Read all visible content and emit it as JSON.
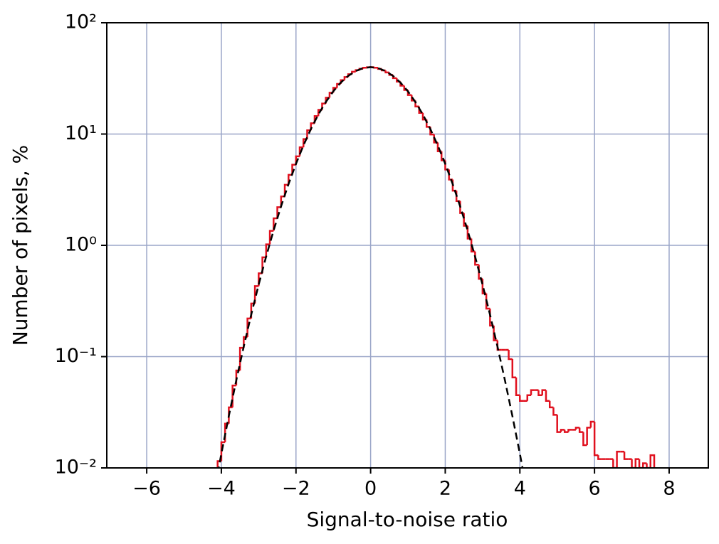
{
  "chart_data": {
    "type": "histogram",
    "xlabel": "Signal-to-noise ratio",
    "ylabel": "Number of pixels, %",
    "xlim": [
      -7.07,
      9.05
    ],
    "ylim": [
      0.01,
      100
    ],
    "log_y": true,
    "grid": true,
    "xticks": [
      {
        "value": -6,
        "label": "−6"
      },
      {
        "value": -4,
        "label": "−4"
      },
      {
        "value": -2,
        "label": "−2"
      },
      0,
      2,
      4,
      6,
      8
    ],
    "yticks": [
      {
        "value": 0.01,
        "label": "10⁻²"
      },
      {
        "value": 0.1,
        "label": "10⁻¹"
      },
      {
        "value": 1,
        "label": "10⁰"
      },
      {
        "value": 10,
        "label": "10¹"
      },
      {
        "value": 100,
        "label": "10²"
      }
    ],
    "color": "#e0101e",
    "bins": [
      -4.1,
      -4.0,
      -3.9,
      -3.8,
      -3.7,
      -3.6,
      -3.5,
      -3.4,
      -3.3,
      -3.2,
      -3.1,
      -3.0,
      -2.9,
      -2.8,
      -2.7,
      -2.6,
      -2.5,
      -2.4,
      -2.3,
      -2.2,
      -2.1,
      -2.0,
      -1.9,
      -1.8,
      -1.7,
      -1.6,
      -1.5,
      -1.4,
      -1.3,
      -1.2,
      -1.1,
      -1.0,
      -0.9,
      -0.8,
      -0.7,
      -0.6,
      -0.5,
      -0.4,
      -0.3,
      -0.2,
      -0.1,
      0,
      0.1,
      0.2,
      0.3,
      0.4,
      0.5,
      0.6,
      0.7,
      0.8,
      0.9,
      1.0,
      1.1,
      1.2,
      1.3,
      1.4,
      1.5,
      1.6,
      1.7,
      1.8,
      1.9,
      2.0,
      2.1,
      2.2,
      2.3,
      2.4,
      2.5,
      2.6,
      2.7,
      2.8,
      2.9,
      3.0,
      3.1,
      3.2,
      3.3,
      3.4,
      3.5,
      3.6,
      3.7,
      3.8,
      3.9,
      4.0,
      4.1,
      4.2,
      4.3,
      4.4,
      4.5,
      4.6,
      4.7,
      4.8,
      4.9,
      5.0,
      5.1,
      5.2,
      5.3,
      5.4,
      5.5,
      5.6,
      5.7,
      5.8,
      5.9,
      6.0,
      6.1,
      6.2,
      6.3,
      6.4,
      6.5,
      6.6,
      6.7,
      6.8,
      6.9,
      7.0,
      7.1,
      7.2,
      7.3,
      7.4,
      7.5,
      7.6
    ],
    "values": [
      0.0115,
      0.017,
      0.025,
      0.035,
      0.055,
      0.075,
      0.12,
      0.15,
      0.22,
      0.3,
      0.43,
      0.56,
      0.78,
      1.02,
      1.35,
      1.75,
      2.2,
      2.75,
      3.5,
      4.3,
      5.3,
      6.3,
      7.6,
      9.0,
      10.8,
      12.5,
      14.5,
      16.5,
      18.8,
      21.2,
      23.5,
      26.0,
      28.2,
      30.5,
      32.5,
      34.5,
      36.3,
      37.5,
      38.6,
      39.4,
      39.8,
      39.9,
      39.4,
      38.5,
      37.3,
      35.8,
      34.0,
      31.8,
      29.6,
      27.2,
      24.9,
      22.4,
      20.0,
      17.7,
      15.5,
      13.5,
      11.6,
      9.9,
      8.4,
      7.0,
      5.8,
      4.8,
      3.9,
      3.1,
      2.5,
      1.95,
      1.5,
      1.15,
      0.88,
      0.67,
      0.5,
      0.37,
      0.27,
      0.19,
      0.14,
      0.115,
      0.115,
      0.115,
      0.095,
      0.065,
      0.045,
      0.04,
      0.04,
      0.045,
      0.05,
      0.05,
      0.045,
      0.05,
      0.04,
      0.035,
      0.03,
      0.021,
      0.022,
      0.021,
      0.022,
      0.022,
      0.023,
      0.021,
      0.016,
      0.023,
      0.026,
      0.013,
      0.012,
      0.012,
      0.012,
      0.012,
      0.01,
      0.014,
      0.014,
      0.012,
      0.012,
      0.01,
      0.012,
      0.01,
      0.011,
      0.01,
      0.013
    ],
    "curve": {
      "type": "line",
      "color": "#000000",
      "dashed": true,
      "x": [
        -4.1,
        -4.0,
        -3.8,
        -3.6,
        -3.4,
        -3.2,
        -3.0,
        -2.8,
        -2.6,
        -2.4,
        -2.2,
        -2.0,
        -1.8,
        -1.6,
        -1.4,
        -1.2,
        -1.0,
        -0.8,
        -0.6,
        -0.4,
        -0.2,
        0,
        0.2,
        0.4,
        0.6,
        0.8,
        1.0,
        1.2,
        1.4,
        1.6,
        1.8,
        2.0,
        2.2,
        2.4,
        2.6,
        2.8,
        3.0,
        3.2,
        3.4,
        3.6,
        3.8,
        4.0,
        4.1
      ],
      "values": [
        0.0089,
        0.0134,
        0.0292,
        0.0612,
        0.123,
        0.238,
        0.443,
        0.792,
        1.36,
        2.24,
        3.55,
        5.4,
        7.9,
        11.1,
        15.0,
        19.4,
        24.2,
        29.0,
        33.3,
        36.8,
        39.1,
        39.9,
        39.1,
        36.8,
        33.3,
        29.0,
        24.2,
        19.4,
        15.0,
        11.1,
        7.9,
        5.4,
        3.55,
        2.24,
        1.36,
        0.792,
        0.443,
        0.238,
        0.123,
        0.0612,
        0.0292,
        0.0134,
        0.0089
      ]
    }
  }
}
